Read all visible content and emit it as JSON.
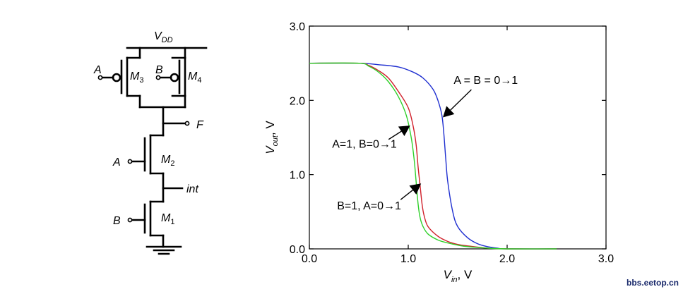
{
  "schematic": {
    "vdd_label": "V",
    "vdd_sub": "DD",
    "input_a": "A",
    "input_b": "B",
    "m3": "M",
    "m3_sub": "3",
    "m4": "M",
    "m4_sub": "4",
    "m2": "M",
    "m2_sub": "2",
    "m1": "M",
    "m1_sub": "1",
    "out_label": "F",
    "int_label": "int"
  },
  "chart_data": {
    "type": "line",
    "xlabel_main": "V",
    "xlabel_sub": "in",
    "xlabel_unit": ", V",
    "ylabel_main": "V",
    "ylabel_sub": "out",
    "ylabel_unit": ", V",
    "xlim": [
      0,
      3
    ],
    "ylim": [
      0,
      3
    ],
    "xticks": [
      "0.0",
      "1.0",
      "2.0",
      "3.0"
    ],
    "yticks": [
      "0.0",
      "1.0",
      "2.0",
      "3.0"
    ],
    "grid": false,
    "series": [
      {
        "name": "A = B = 0→1",
        "color": "#1f2fd0",
        "x": [
          0.0,
          0.5,
          0.7,
          0.9,
          1.05,
          1.15,
          1.25,
          1.3,
          1.34,
          1.36,
          1.38,
          1.4,
          1.45,
          1.5,
          1.6,
          1.7,
          1.8,
          1.9,
          2.0,
          2.5
        ],
        "y": [
          2.5,
          2.5,
          2.48,
          2.45,
          2.38,
          2.3,
          2.15,
          2.0,
          1.8,
          1.55,
          1.2,
          0.9,
          0.5,
          0.3,
          0.15,
          0.07,
          0.03,
          0.01,
          0.0,
          0.0
        ]
      },
      {
        "name": "A=1, B=0→1",
        "color": "#d0202a",
        "x": [
          0.0,
          0.5,
          0.6,
          0.7,
          0.8,
          0.9,
          1.0,
          1.05,
          1.08,
          1.1,
          1.12,
          1.14,
          1.16,
          1.2,
          1.3,
          1.4,
          1.5,
          1.6,
          1.8,
          2.0,
          2.5
        ],
        "y": [
          2.5,
          2.5,
          2.47,
          2.4,
          2.3,
          2.12,
          1.9,
          1.65,
          1.4,
          1.1,
          0.85,
          0.6,
          0.45,
          0.3,
          0.17,
          0.1,
          0.06,
          0.04,
          0.01,
          0.0,
          0.0
        ]
      },
      {
        "name": "B=1, A=0→1",
        "color": "#2fd02a",
        "x": [
          0.0,
          0.5,
          0.6,
          0.7,
          0.8,
          0.9,
          0.98,
          1.03,
          1.06,
          1.08,
          1.1,
          1.12,
          1.15,
          1.2,
          1.3,
          1.4,
          1.5,
          1.6,
          1.8,
          2.0,
          2.5
        ],
        "y": [
          2.5,
          2.5,
          2.46,
          2.38,
          2.25,
          2.05,
          1.8,
          1.5,
          1.2,
          0.9,
          0.6,
          0.42,
          0.3,
          0.2,
          0.12,
          0.08,
          0.05,
          0.03,
          0.01,
          0.0,
          0.0
        ]
      }
    ],
    "annotations": [
      {
        "text": "A = B = 0→1",
        "x": 1.46,
        "y": 2.22,
        "arrow_to": [
          1.35,
          1.77
        ]
      },
      {
        "text": "A=1, B=0→1",
        "x": 0.23,
        "y": 1.36,
        "arrow_to": [
          1.02,
          1.66
        ]
      },
      {
        "text": "B=1, A=0→1",
        "x": 0.28,
        "y": 0.53,
        "arrow_to": [
          1.13,
          0.88
        ]
      }
    ]
  },
  "watermark": "bbs.eetop.cn"
}
